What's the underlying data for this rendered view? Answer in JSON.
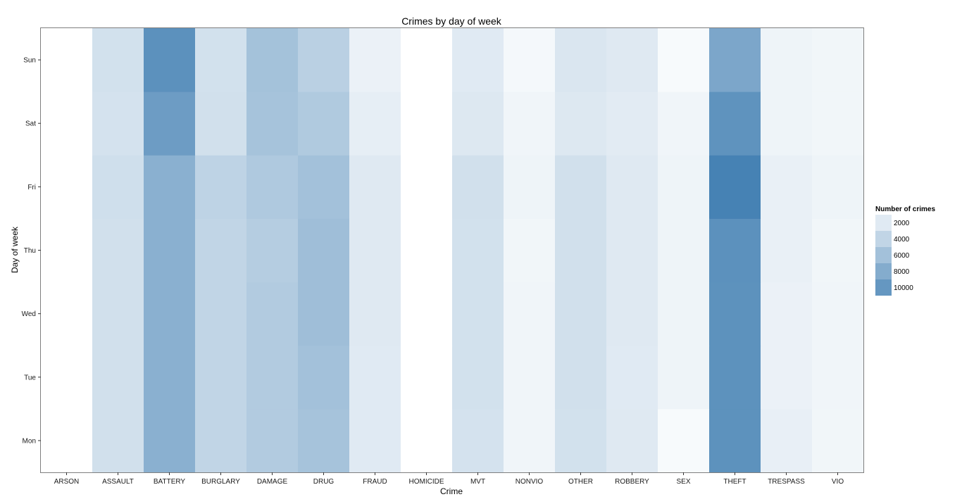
{
  "chart_data": {
    "type": "heatmap",
    "title": "Crimes by day of week",
    "xlabel": "Crime",
    "ylabel": "Day of week",
    "x_categories": [
      "ARSON",
      "ASSAULT",
      "BATTERY",
      "BURGLARY",
      "DAMAGE",
      "DRUG",
      "FRAUD",
      "HOMICIDE",
      "MVT",
      "NONVIO",
      "OTHER",
      "ROBBERY",
      "SEX",
      "THEFT",
      "TRESPASS",
      "VIO"
    ],
    "y_categories": [
      "Mon",
      "Tue",
      "Wed",
      "Thu",
      "Fri",
      "Sat",
      "Sun"
    ],
    "values": [
      [
        30,
        3000,
        7600,
        4000,
        5000,
        5800,
        2000,
        30,
        2800,
        1000,
        2900,
        2100,
        500,
        10500,
        1500,
        900
      ],
      [
        30,
        3000,
        7600,
        4000,
        5000,
        6000,
        2000,
        30,
        2900,
        1000,
        3000,
        2000,
        1100,
        10500,
        1300,
        1000
      ],
      [
        30,
        3000,
        7600,
        4000,
        5000,
        6200,
        2100,
        30,
        2900,
        1000,
        3000,
        2100,
        1100,
        10500,
        1300,
        1000
      ],
      [
        30,
        3000,
        7600,
        4000,
        4800,
        6200,
        2100,
        30,
        2900,
        900,
        3000,
        2100,
        1100,
        10600,
        1400,
        900
      ],
      [
        30,
        3100,
        7600,
        4200,
        5200,
        6000,
        2100,
        30,
        3000,
        1100,
        3000,
        2100,
        1100,
        12000,
        1400,
        1100
      ],
      [
        30,
        2800,
        9500,
        3000,
        5800,
        5100,
        1600,
        30,
        2200,
        1000,
        2200,
        1900,
        1000,
        10400,
        1100,
        900
      ],
      [
        30,
        2900,
        10600,
        2900,
        5900,
        4500,
        1300,
        30,
        2000,
        700,
        2400,
        2100,
        500,
        8500,
        1100,
        900
      ]
    ],
    "legend": {
      "title": "Number of crimes",
      "breaks": [
        2000,
        4000,
        6000,
        8000,
        10000
      ],
      "position": "right"
    },
    "color_low": "#ffffff",
    "color_high": "#4682b4",
    "value_max": 12000,
    "grid": false,
    "panel_border": "#7f7f7f"
  }
}
